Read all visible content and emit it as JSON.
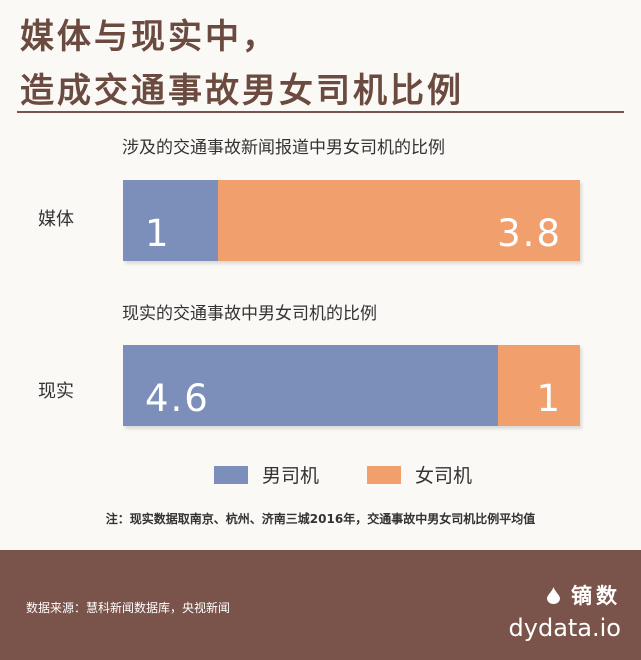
{
  "title": {
    "line1": "媒体与现实中，",
    "line2": "造成交通事故男女司机比例"
  },
  "chart_data": {
    "type": "bar",
    "stacked": true,
    "orientation": "horizontal",
    "categories": [
      "媒体",
      "现实"
    ],
    "subtitles": [
      "涉及的交通事故新闻报道中男女司机的比例",
      "现实的交通事故中男女司机的比例"
    ],
    "series": [
      {
        "name": "男司机",
        "values": [
          1,
          4.6
        ],
        "color": "#7b8fba"
      },
      {
        "name": "女司机",
        "values": [
          3.8,
          1
        ],
        "color": "#f09f6d"
      }
    ],
    "value_labels": [
      [
        "1",
        "3.8"
      ],
      [
        "4.6",
        "1"
      ]
    ],
    "legend": "bottom-center",
    "grid": false
  },
  "note": "注：现实数据取南京、杭州、济南三城2016年，交通事故中男女司机比例平均值",
  "footer": {
    "source": "数据来源：慧科新闻数据库，央视新闻",
    "brand_zh": "镝数",
    "brand_url": "dydata.io",
    "brand_icon": "drop-icon"
  }
}
